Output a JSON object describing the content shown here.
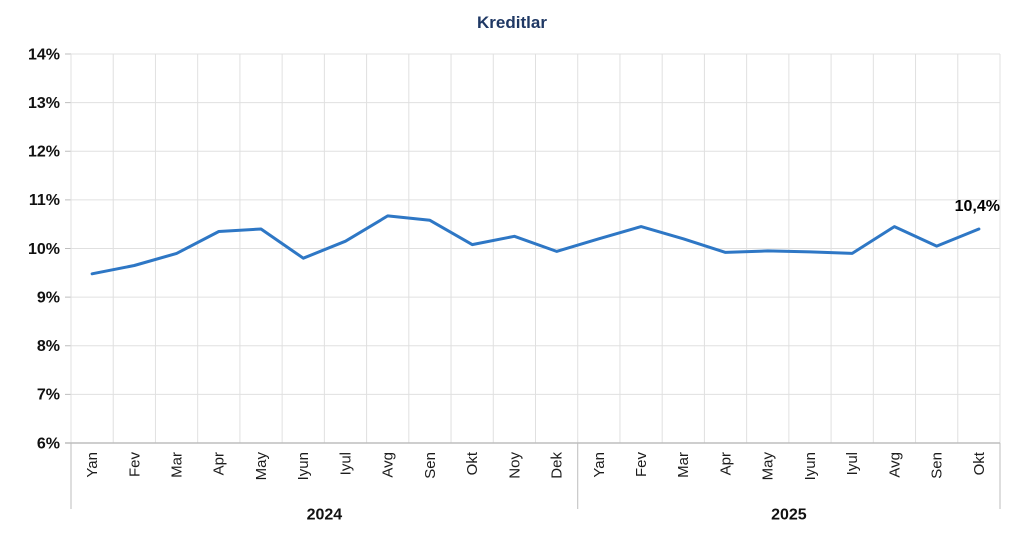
{
  "chart_data": {
    "type": "line",
    "title": "Kreditlar",
    "categories": [
      "Yan",
      "Fev",
      "Mar",
      "Apr",
      "May",
      "Iyun",
      "Iyul",
      "Avg",
      "Sen",
      "Okt",
      "Noy",
      "Dek",
      "Yan",
      "Fev",
      "Mar",
      "Apr",
      "May",
      "Iyun",
      "Iyul",
      "Avg",
      "Sen",
      "Okt"
    ],
    "year_groups": [
      {
        "label": "2024",
        "count": 12
      },
      {
        "label": "2025",
        "count": 10
      }
    ],
    "series": [
      {
        "name": "Kreditlar",
        "values": [
          9.48,
          9.65,
          9.9,
          10.35,
          10.4,
          9.8,
          10.15,
          10.67,
          10.58,
          10.08,
          10.25,
          9.94,
          10.2,
          10.45,
          10.2,
          9.92,
          9.95,
          9.93,
          9.9,
          10.45,
          10.05,
          10.4
        ]
      }
    ],
    "ylim": [
      6,
      14
    ],
    "ytick_step": 1,
    "ytick_suffix": "%",
    "grid": true,
    "legend": "none",
    "last_point_label": "10,4%",
    "line_color": "#2e77c5",
    "title_color": "#1f3864",
    "grid_color": "#e0e0e0",
    "axis_color": "#bdbdbd",
    "label_color": "#111111"
  }
}
